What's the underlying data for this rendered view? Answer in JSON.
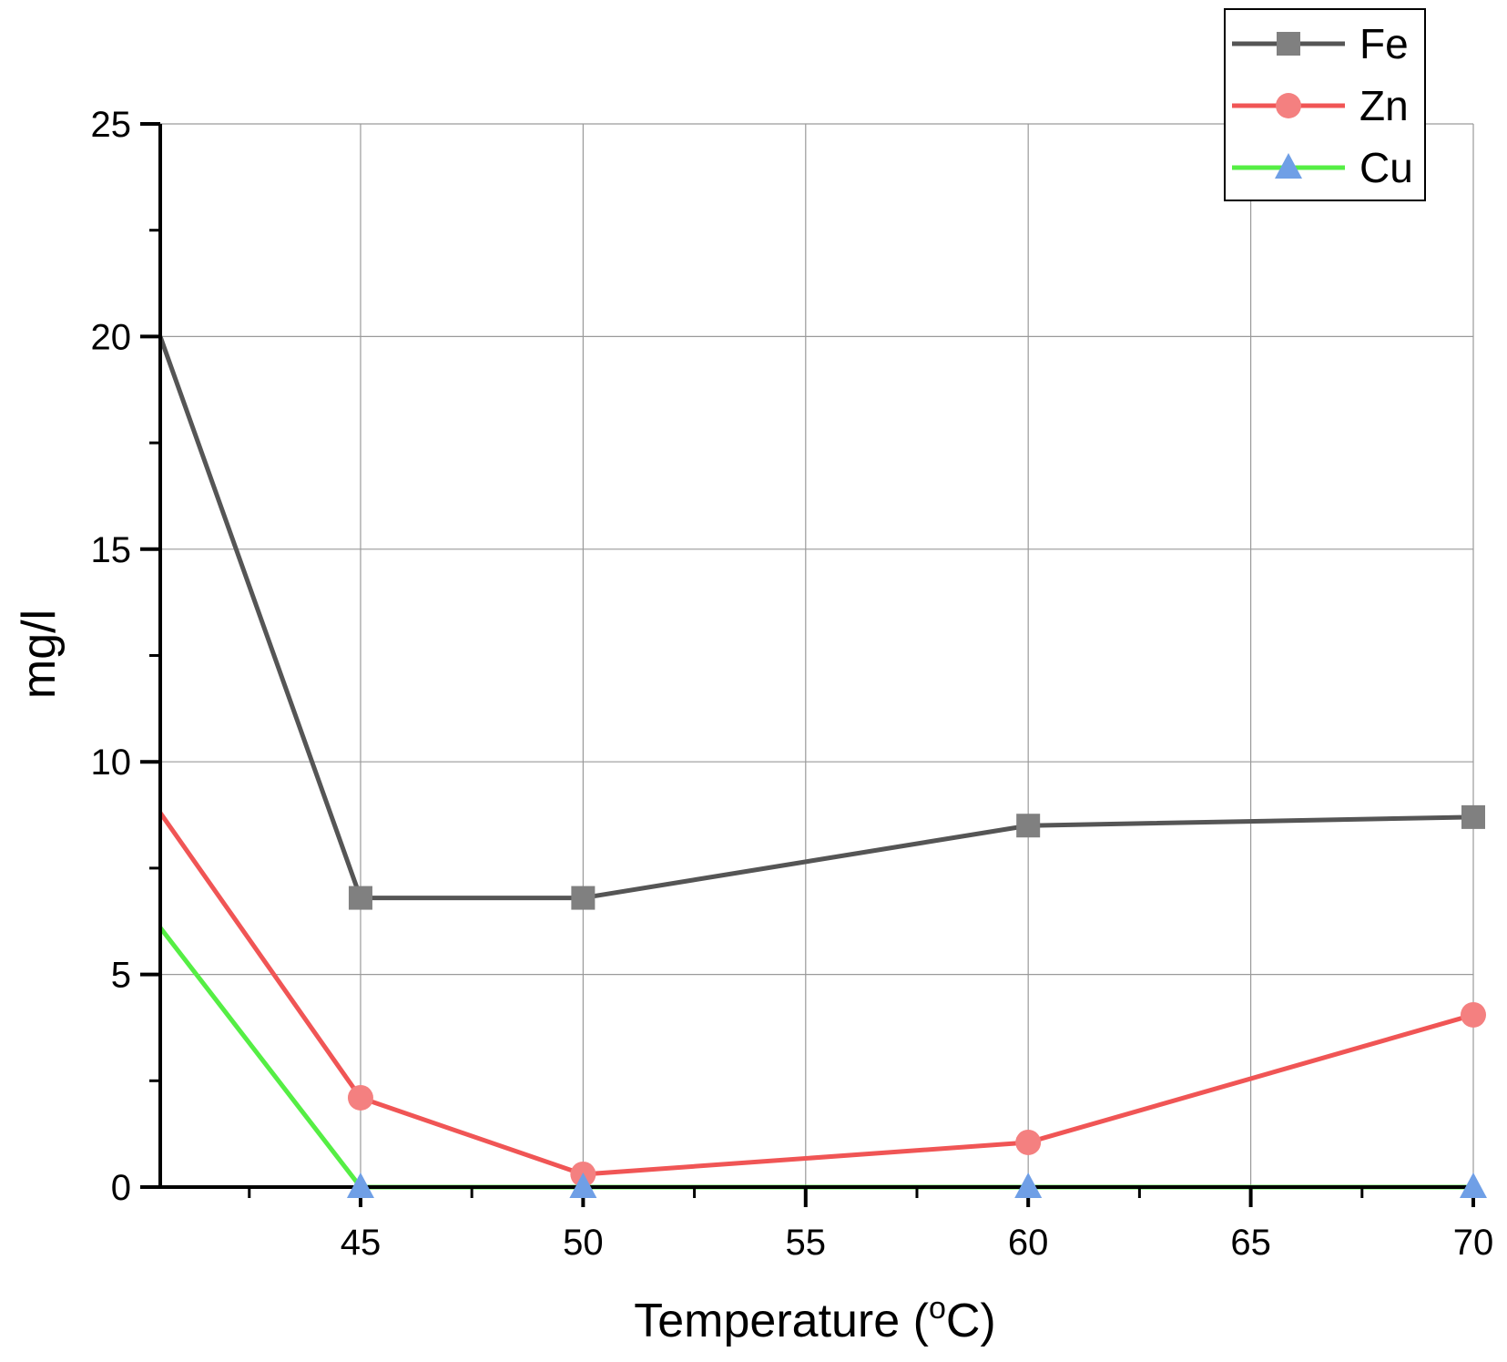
{
  "chart_data": {
    "type": "line",
    "title": "",
    "xlabel": "Temperature (",
    "xlabel_sup": "o",
    "xlabel_suffix": "C)",
    "ylabel": "mg/l",
    "xlim": [
      40.5,
      70
    ],
    "ylim": [
      0,
      25
    ],
    "x_ticks": [
      45,
      50,
      55,
      60,
      65,
      70
    ],
    "x_tick_labels": [
      "45",
      "50",
      "55",
      "60",
      "65",
      "70"
    ],
    "y_ticks": [
      0,
      5,
      10,
      15,
      20,
      25
    ],
    "y_tick_labels": [
      "0",
      "5",
      "10",
      "15",
      "20",
      "25"
    ],
    "grid": true,
    "legend_position": "top-right",
    "series": [
      {
        "name": "Fe",
        "line_color": "#555555",
        "marker_color": "#808080",
        "marker": "square",
        "start": {
          "x": 40.5,
          "y": 20.0
        },
        "points": [
          {
            "x": 45,
            "y": 6.8
          },
          {
            "x": 50,
            "y": 6.8
          },
          {
            "x": 60,
            "y": 8.5
          },
          {
            "x": 70,
            "y": 8.7
          }
        ]
      },
      {
        "name": "Zn",
        "line_color": "#f05555",
        "marker_color": "#f48080",
        "marker": "circle",
        "start": {
          "x": 40.5,
          "y": 8.8
        },
        "points": [
          {
            "x": 45,
            "y": 2.1
          },
          {
            "x": 50,
            "y": 0.3
          },
          {
            "x": 60,
            "y": 1.05
          },
          {
            "x": 70,
            "y": 4.05
          }
        ]
      },
      {
        "name": "Cu",
        "line_color": "#55ee44",
        "marker_color": "#6f9fe6",
        "marker": "triangle",
        "start": {
          "x": 40.5,
          "y": 6.1
        },
        "points": [
          {
            "x": 45,
            "y": 0.0
          },
          {
            "x": 50,
            "y": 0.0
          },
          {
            "x": 60,
            "y": 0.0
          },
          {
            "x": 70,
            "y": 0.0
          }
        ]
      }
    ]
  }
}
